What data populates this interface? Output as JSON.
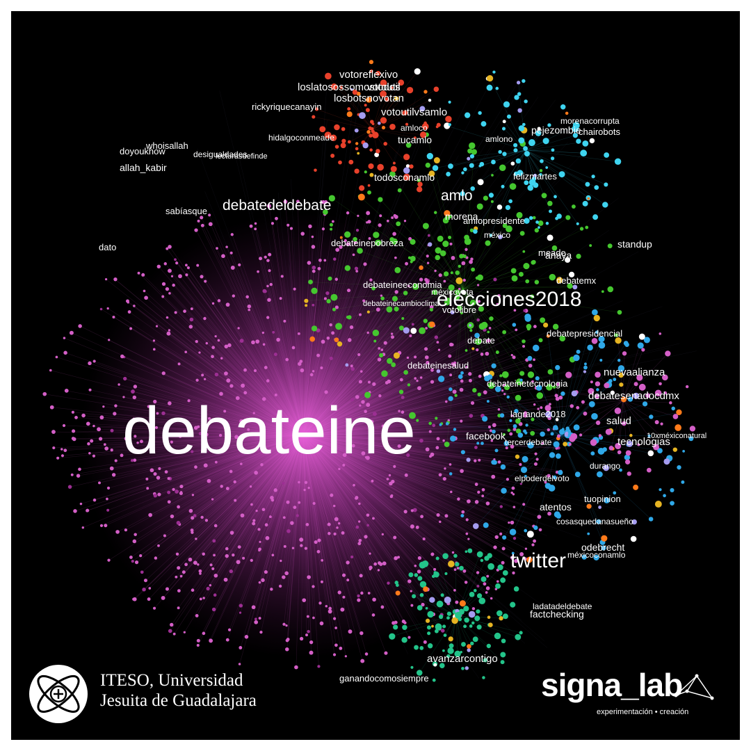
{
  "hashtags": {
    "center": {
      "id": "debateine",
      "label": "debateine"
    },
    "items": [
      {
        "id": "elecciones2018",
        "label": "elecciones2018",
        "tier": "large",
        "group": "green"
      },
      {
        "id": "twitter",
        "label": "twitter",
        "tier": "large",
        "group": "teal"
      },
      {
        "id": "debatedeldebate",
        "label": "debatedeldebate",
        "tier": "mid",
        "group": "pink"
      },
      {
        "id": "amlo",
        "label": "amlo",
        "tier": "mid",
        "group": "green"
      },
      {
        "id": "votoreflexivo",
        "label": "votoreflexivo",
        "tier": "small",
        "group": "red"
      },
      {
        "id": "loslatosossomostodos",
        "label": "loslatosossomostodos",
        "tier": "small",
        "group": "red"
      },
      {
        "id": "votoutil",
        "label": "votoutil",
        "tier": "small",
        "group": "red"
      },
      {
        "id": "losbotsnovotan",
        "label": "losbotsnovotan",
        "tier": "small",
        "group": "red"
      },
      {
        "id": "votoutilvsamlo",
        "label": "votoutilvsamlo",
        "tier": "small",
        "group": "red"
      },
      {
        "id": "doyoukhow",
        "label": "doyoukhow",
        "tier": "small",
        "group": "green"
      },
      {
        "id": "whoisallah",
        "label": "whoisallah",
        "tier": "small",
        "group": "green"
      },
      {
        "id": "allah_kabir",
        "label": "allah_kabir",
        "tier": "small",
        "group": "green"
      },
      {
        "id": "sabiasque",
        "label": "sabíasque",
        "tier": "small",
        "group": "pink"
      },
      {
        "id": "dato",
        "label": "dato",
        "tier": "small",
        "group": "blue"
      },
      {
        "id": "anaya",
        "label": "anaya",
        "tier": "small",
        "group": "green"
      },
      {
        "id": "nuevaalianza",
        "label": "nuevaalianza",
        "tier": "small",
        "group": "pink"
      },
      {
        "id": "debatesenadocdmx",
        "label": "debatesenadocdmx",
        "tier": "small",
        "group": "pink"
      },
      {
        "id": "salud",
        "label": "salud",
        "tier": "small",
        "group": "blue"
      },
      {
        "id": "tecnologias",
        "label": "tecnologias",
        "tier": "small",
        "group": "blue"
      },
      {
        "id": "avanzarcontigo",
        "label": "avanzarcontigo",
        "tier": "small",
        "group": "teal"
      },
      {
        "id": "debateinetecnologia",
        "label": "debateinetecnologia",
        "tier": "small",
        "group": "blue"
      },
      {
        "id": "debateinesalud",
        "label": "debateinesalud",
        "tier": "small",
        "group": "green"
      },
      {
        "id": "votolibre",
        "label": "votolibre",
        "tier": "small",
        "group": "green"
      },
      {
        "id": "debateineeconomia",
        "label": "debateineeconomia",
        "tier": "small",
        "group": "green"
      },
      {
        "id": "debateinecambioclima",
        "label": "debateinecambioclima",
        "tier": "small",
        "group": "green"
      },
      {
        "id": "debateinepobreza",
        "label": "debateinepobreza",
        "tier": "small",
        "group": "green"
      },
      {
        "id": "todosconamlo",
        "label": "todosconamlo",
        "tier": "small",
        "group": "green"
      },
      {
        "id": "mexico",
        "label": "méxico",
        "tier": "small",
        "group": "green"
      },
      {
        "id": "meade",
        "label": "meade",
        "tier": "small",
        "group": "green"
      },
      {
        "id": "ganandocomosiempre",
        "label": "ganandocomosiempre",
        "tier": "small",
        "group": "teal"
      },
      {
        "id": "durango",
        "label": "durango",
        "tier": "small",
        "group": "blue"
      },
      {
        "id": "tuopinion",
        "label": "tuopinion",
        "tier": "small",
        "group": "blue"
      },
      {
        "id": "atentos",
        "label": "atentos",
        "tier": "small",
        "group": "blue"
      },
      {
        "id": "desigualdades",
        "label": "desigualdades",
        "tier": "small",
        "group": "green"
      },
      {
        "id": "lagrande2018",
        "label": "lagrande2018",
        "tier": "small",
        "group": "blue"
      },
      {
        "id": "facebook",
        "label": "facebook",
        "tier": "small",
        "group": "blue"
      },
      {
        "id": "amlono",
        "label": "amlono",
        "tier": "small",
        "group": "blue"
      },
      {
        "id": "debate",
        "label": "debate",
        "tier": "small",
        "group": "green"
      },
      {
        "id": "debatepresidencial",
        "label": "debatepresidencial",
        "tier": "small",
        "group": "green"
      },
      {
        "id": "tercerdebate",
        "label": "tercerdebate",
        "tier": "small",
        "group": "blue"
      },
      {
        "id": "cosasquedanasueño",
        "label": "cosasquedanasueño",
        "tier": "small",
        "group": "blue"
      },
      {
        "id": "odebrecht",
        "label": "odebrecht",
        "tier": "small",
        "group": "blue"
      },
      {
        "id": "mexicoconamlo",
        "label": "méxicoconamlo",
        "tier": "small",
        "group": "blue"
      },
      {
        "id": "ladatadeldebate",
        "label": "ladatadeldebate",
        "tier": "small",
        "group": "pink"
      },
      {
        "id": "factchecking",
        "label": "factchecking",
        "tier": "small",
        "group": "pink"
      },
      {
        "id": "mexicovota",
        "label": "méxicovota",
        "tier": "small",
        "group": "green"
      },
      {
        "id": "amlopresidente",
        "label": "amlopresidente",
        "tier": "small",
        "group": "green"
      },
      {
        "id": "morena",
        "label": "morena",
        "tier": "small",
        "group": "green"
      },
      {
        "id": "elpoderdelvoto",
        "label": "elpoderdelvoto",
        "tier": "small",
        "group": "blue"
      },
      {
        "id": "felizmartes",
        "label": "felizmartes",
        "tier": "small",
        "group": "blue"
      },
      {
        "id": "pejezombie",
        "label": "pejezombie",
        "tier": "small",
        "group": "blue"
      },
      {
        "id": "morenacorrupta",
        "label": "morenacorrupta",
        "tier": "small",
        "group": "blue"
      },
      {
        "id": "chairobots",
        "label": "chairobots",
        "tier": "small",
        "group": "blue"
      },
      {
        "id": "rickyriquecanayin",
        "label": "rickyriquecanayin",
        "tier": "small",
        "group": "green"
      },
      {
        "id": "lecturasdefinde",
        "label": "lecturasdefinde",
        "tier": "small",
        "group": "green"
      },
      {
        "id": "debatemx",
        "label": "debatemx",
        "tier": "small",
        "group": "green"
      },
      {
        "id": "standup",
        "label": "standup",
        "tier": "small",
        "group": "green"
      },
      {
        "id": "10xmexiconatural",
        "label": "10xméxiconatural",
        "tier": "small",
        "group": "blue"
      },
      {
        "id": "hidalgoconmeade",
        "label": "hidalgoconmeade",
        "tier": "small",
        "group": "green"
      },
      {
        "id": "tucamlo",
        "label": "tucamlo",
        "tier": "small",
        "group": "red"
      },
      {
        "id": "amloco",
        "label": "amloco",
        "tier": "small",
        "group": "red"
      }
    ]
  },
  "palette": {
    "pink": "#d45fc7",
    "pink_dark": "#9c2f93",
    "green": "#45c72f",
    "red": "#e8412b",
    "orange": "#ff7a1a",
    "yellow": "#e6b422",
    "blue": "#2fa8e8",
    "cyan": "#3fd4f0",
    "teal": "#23c48a",
    "lavender": "#a59cf0",
    "white": "#ffffff"
  },
  "branding": {
    "iteso_line1": "ITESO, Universidad",
    "iteso_line2": "Jesuita de Guadalajara",
    "signa_name": "signa_lab",
    "signa_tagline": "experimentación • creación"
  }
}
